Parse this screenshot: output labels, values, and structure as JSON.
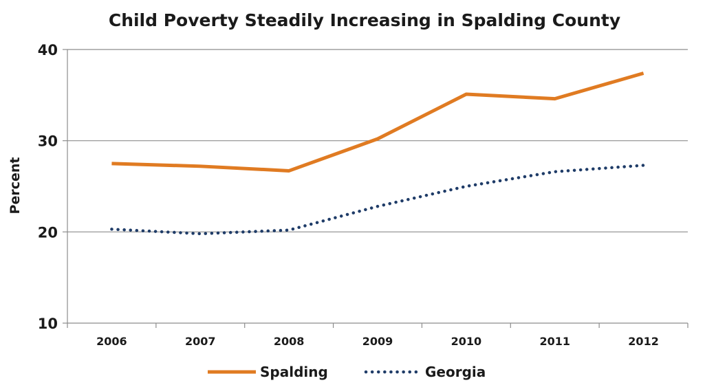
{
  "chart_data": {
    "type": "line",
    "title": "Child Poverty Steadily Increasing in Spalding County",
    "xlabel": "",
    "ylabel": "Percent",
    "categories": [
      "2006",
      "2007",
      "2008",
      "2009",
      "2010",
      "2011",
      "2012"
    ],
    "ylim": [
      10,
      40
    ],
    "yticks": [
      10,
      20,
      30,
      40
    ],
    "grid": true,
    "legend_position": "bottom",
    "series": [
      {
        "name": "Spalding",
        "values": [
          27.5,
          27.2,
          26.7,
          30.2,
          35.1,
          34.6,
          37.4
        ],
        "color": "#e07b22",
        "style": "solid"
      },
      {
        "name": "Georgia",
        "values": [
          20.3,
          19.8,
          20.2,
          22.8,
          25.0,
          26.6,
          27.3
        ],
        "color": "#1f3c68",
        "style": "dotted"
      }
    ]
  }
}
